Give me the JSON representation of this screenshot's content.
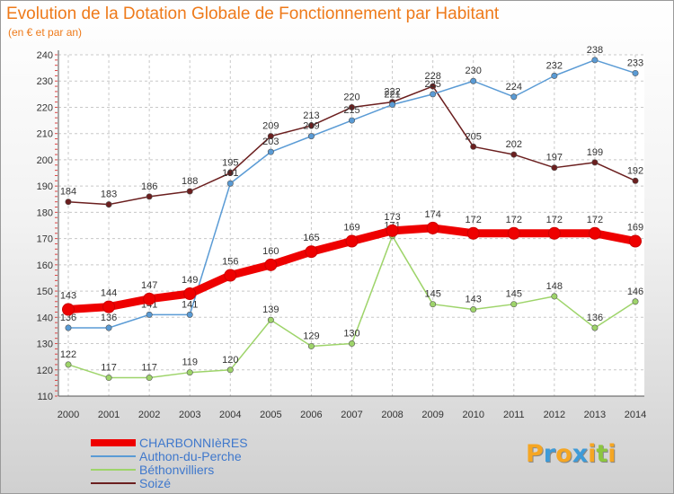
{
  "title": "Evolution de la Dotation Globale de Fonctionnement par Habitant",
  "subtitle": "(en € et par an)",
  "logo": {
    "text": "Proxiti",
    "letters": [
      "P",
      "r",
      "o",
      "x",
      "i",
      "t",
      "i"
    ],
    "colors": [
      "#f5a623",
      "#3f9bd8",
      "#f5a623",
      "#3f9bd8",
      "#f5a623",
      "#8cc63f",
      "#f5a623"
    ]
  },
  "chart_data": {
    "type": "line",
    "categories": [
      "2000",
      "2001",
      "2002",
      "2003",
      "2004",
      "2005",
      "2006",
      "2007",
      "2008",
      "2009",
      "2010",
      "2011",
      "2012",
      "2013",
      "2014"
    ],
    "ylim": [
      110,
      240
    ],
    "yticks": [
      110,
      120,
      130,
      140,
      150,
      160,
      170,
      180,
      190,
      200,
      210,
      220,
      230,
      240
    ],
    "grid": true,
    "legend_position": "bottom-left",
    "series": [
      {
        "name": "CHARBONNIèRES",
        "color": "#ee0000",
        "values": [
          143,
          144,
          147,
          149,
          156,
          160,
          165,
          169,
          173,
          174,
          172,
          172,
          172,
          172,
          169
        ]
      },
      {
        "name": "Authon-du-Perche",
        "color": "#5a9bd5",
        "values": [
          136,
          136,
          141,
          141,
          191,
          203,
          209,
          215,
          221,
          225,
          230,
          224,
          232,
          238,
          233
        ]
      },
      {
        "name": "Béthonvilliers",
        "color": "#9ed46a",
        "values": [
          122,
          117,
          117,
          119,
          120,
          139,
          129,
          130,
          171,
          145,
          143,
          145,
          148,
          136,
          146
        ]
      },
      {
        "name": "Soizé",
        "color": "#6b1f1f",
        "values": [
          184,
          183,
          186,
          188,
          195,
          209,
          213,
          220,
          222,
          228,
          205,
          202,
          197,
          199,
          192
        ]
      }
    ]
  }
}
